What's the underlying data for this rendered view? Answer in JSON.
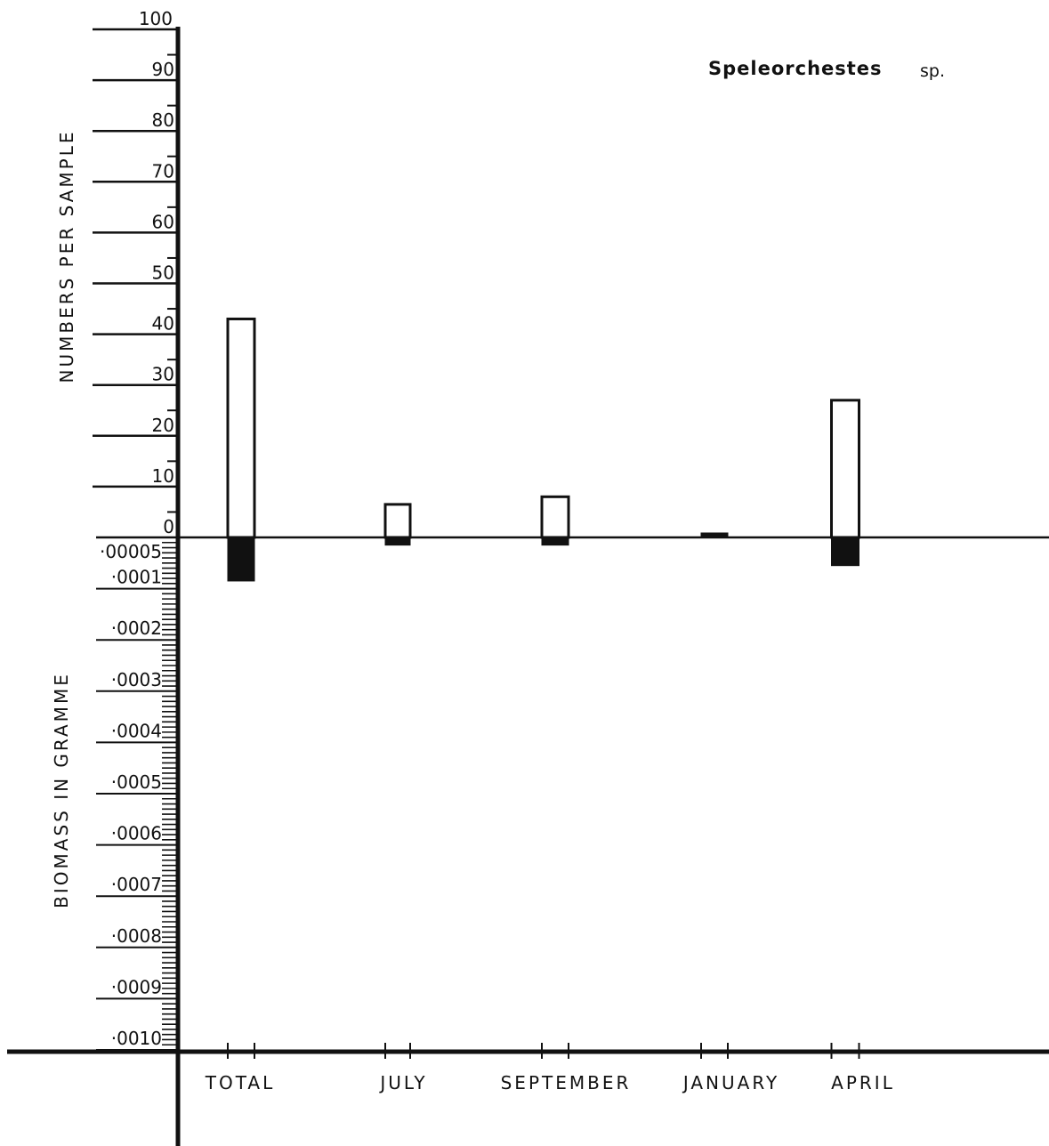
{
  "chart_data": {
    "type": "bar",
    "title": "Speleorchestes",
    "title_suffix": "sp.",
    "categories": [
      "TOTAL",
      "JULY",
      "SEPTEMBER",
      "JANUARY",
      "APRIL"
    ],
    "series": [
      {
        "name": "",
        "axis": "numbers",
        "style": "open",
        "values": [
          43,
          6.5,
          8,
          0,
          27
        ]
      },
      {
        "name": "",
        "axis": "biomass",
        "style": "filled",
        "values": [
          8.5e-05,
          1.5e-05,
          1.5e-05,
          3e-06,
          5.5e-05
        ]
      }
    ],
    "upper_axis": {
      "label": "NUMBERS    PER    SAMPLE",
      "range": [
        0,
        100
      ],
      "ticks": [
        "0",
        "10",
        "20",
        "30",
        "40",
        "50",
        "60",
        "70",
        "80",
        "90",
        "100"
      ]
    },
    "lower_axis": {
      "label": "BIOMASS    IN    GRAMME",
      "range": [
        0,
        0.001
      ],
      "ticks": [
        "·00005",
        "·0001",
        "·0002",
        "·0003",
        "·0004",
        "·0005",
        "·0006",
        "·0007",
        "·0008",
        "·0009",
        "·0010"
      ],
      "tick_values": [
        5e-05,
        0.0001,
        0.0002,
        0.0003,
        0.0004,
        0.0005,
        0.0006,
        0.0007,
        0.0008,
        0.0009,
        0.001
      ]
    },
    "grid": false,
    "colors": {
      "ink": "#111111",
      "open_fill": "#ffffff",
      "filled": "#111111"
    }
  }
}
